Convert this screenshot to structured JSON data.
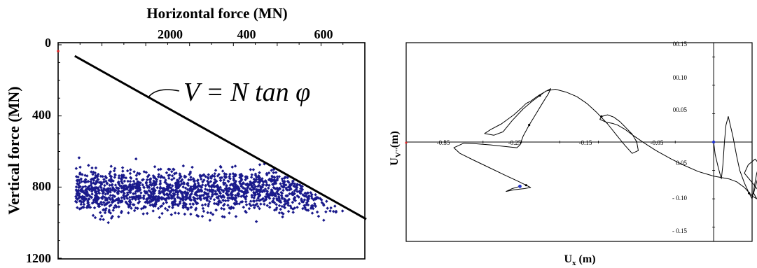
{
  "chart_data": [
    {
      "type": "scatter",
      "title": "Horizontal force (MN)",
      "xlabel": "Horizontal force (MN)",
      "ylabel": "Vertical force (MN)",
      "x_tick_labels": [
        "2000",
        "400",
        "600"
      ],
      "y_tick_labels": [
        "0",
        "400",
        "800",
        "1200"
      ],
      "xlim": [
        0,
        700
      ],
      "ylim": [
        0,
        1200
      ],
      "y_inverted": true,
      "annotation": "V = N tan φ",
      "envelope_line": {
        "x": [
          30,
          700
        ],
        "y": [
          0,
          1000
        ]
      },
      "point_color": "#1a1a8c",
      "point_cloud": {
        "count": 1600,
        "x_range": [
          40,
          650
        ],
        "y_center": 820,
        "y_spread": 110,
        "y_range": [
          560,
          1085
        ]
      }
    },
    {
      "type": "line",
      "xlabel": "U",
      "xlabel_sub": "x",
      "xlabel_unit": " (m)",
      "ylabel": "U",
      "ylabel_sub": "V''",
      "ylabel_unit": "(m)",
      "x_tick_labels": [
        "-0.35",
        "-0.25",
        "-0.15",
        "-0.05"
      ],
      "y_tick_labels": [
        "00.15",
        "00.10",
        "00.05",
        "0.05",
        "- 0.10",
        "- 0.15"
      ],
      "xlim": [
        -0.4,
        0.05
      ],
      "ylim": [
        -0.175,
        0.175
      ],
      "line_color": "#000000",
      "marker_start_color": "#2233cc",
      "trajectory": [
        [
          0.0,
          0.0
        ],
        [
          0.002,
          -0.022
        ],
        [
          0.006,
          -0.045
        ],
        [
          0.01,
          -0.065
        ],
        [
          0.012,
          -0.04
        ],
        [
          0.014,
          0.0
        ],
        [
          0.016,
          0.03
        ],
        [
          0.019,
          0.045
        ],
        [
          0.025,
          0.01
        ],
        [
          0.03,
          -0.025
        ],
        [
          0.034,
          -0.05
        ],
        [
          0.04,
          -0.072
        ],
        [
          0.046,
          -0.09
        ],
        [
          0.05,
          -0.1
        ],
        [
          0.052,
          -0.085
        ],
        [
          0.056,
          -0.055
        ],
        [
          0.062,
          -0.03
        ],
        [
          0.067,
          0.0
        ],
        [
          0.068,
          0.003
        ],
        [
          0.066,
          -0.03
        ],
        [
          0.064,
          -0.06
        ],
        [
          0.062,
          -0.09
        ],
        [
          0.065,
          -0.105
        ],
        [
          0.058,
          -0.085
        ],
        [
          0.048,
          -0.068
        ],
        [
          0.04,
          -0.055
        ],
        [
          0.045,
          -0.04
        ],
        [
          0.054,
          -0.03
        ],
        [
          0.06,
          -0.04
        ],
        [
          0.057,
          -0.065
        ],
        [
          0.052,
          -0.09
        ],
        [
          0.056,
          -0.1
        ],
        [
          0.05,
          -0.095
        ],
        [
          0.04,
          -0.08
        ],
        [
          0.03,
          -0.07
        ],
        [
          0.02,
          -0.065
        ],
        [
          0.0,
          -0.06
        ],
        [
          -0.02,
          -0.052
        ],
        [
          -0.04,
          -0.04
        ],
        [
          -0.055,
          -0.03
        ],
        [
          -0.075,
          -0.015
        ],
        [
          -0.09,
          -0.002
        ],
        [
          -0.105,
          0.012
        ],
        [
          -0.115,
          0.022
        ],
        [
          -0.125,
          0.03
        ],
        [
          -0.132,
          0.033
        ],
        [
          -0.14,
          0.035
        ],
        [
          -0.148,
          0.04
        ],
        [
          -0.146,
          0.045
        ],
        [
          -0.138,
          0.048
        ],
        [
          -0.13,
          0.044
        ],
        [
          -0.122,
          0.036
        ],
        [
          -0.114,
          0.025
        ],
        [
          -0.106,
          0.014
        ],
        [
          -0.1,
          0.0
        ],
        [
          -0.098,
          -0.015
        ],
        [
          -0.106,
          -0.02
        ],
        [
          -0.116,
          -0.005
        ],
        [
          -0.128,
          0.015
        ],
        [
          -0.138,
          0.032
        ],
        [
          -0.152,
          0.052
        ],
        [
          -0.165,
          0.068
        ],
        [
          -0.178,
          0.08
        ],
        [
          -0.192,
          0.088
        ],
        [
          -0.206,
          0.093
        ],
        [
          -0.218,
          0.09
        ],
        [
          -0.226,
          0.082
        ],
        [
          -0.236,
          0.072
        ],
        [
          -0.248,
          0.058
        ],
        [
          -0.262,
          0.038
        ],
        [
          -0.274,
          0.018
        ],
        [
          -0.286,
          0.012
        ],
        [
          -0.298,
          0.015
        ],
        [
          -0.29,
          0.022
        ],
        [
          -0.276,
          0.032
        ],
        [
          -0.26,
          0.048
        ],
        [
          -0.25,
          0.06
        ],
        [
          -0.244,
          0.068
        ],
        [
          -0.238,
          0.072
        ],
        [
          -0.23,
          0.08
        ],
        [
          -0.22,
          0.088
        ],
        [
          -0.212,
          0.094
        ],
        [
          -0.215,
          0.085
        ],
        [
          -0.222,
          0.07
        ],
        [
          -0.23,
          0.052
        ],
        [
          -0.24,
          0.03
        ],
        [
          -0.248,
          0.01
        ],
        [
          -0.252,
          -0.005
        ],
        [
          -0.256,
          -0.01
        ],
        [
          -0.27,
          -0.008
        ],
        [
          -0.29,
          -0.005
        ],
        [
          -0.31,
          -0.003
        ],
        [
          -0.325,
          -0.002
        ],
        [
          -0.338,
          -0.01
        ],
        [
          -0.33,
          -0.02
        ],
        [
          -0.312,
          -0.032
        ],
        [
          -0.292,
          -0.045
        ],
        [
          -0.272,
          -0.058
        ],
        [
          -0.256,
          -0.068
        ],
        [
          -0.244,
          -0.076
        ],
        [
          -0.238,
          -0.08
        ],
        [
          -0.246,
          -0.082
        ],
        [
          -0.26,
          -0.084
        ],
        [
          -0.27,
          -0.087
        ],
        [
          -0.262,
          -0.082
        ],
        [
          -0.252,
          -0.078
        ]
      ]
    }
  ]
}
